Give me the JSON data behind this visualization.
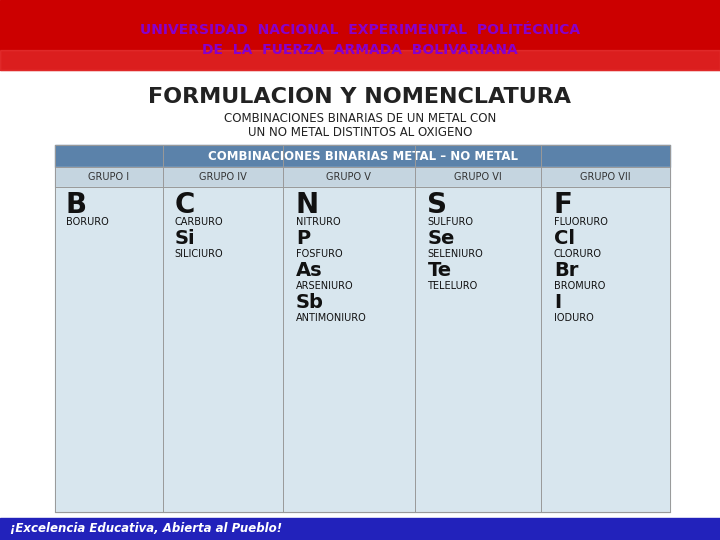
{
  "title1": "FORMULACION Y NOMENCLATURA",
  "title2_line1": "COMBINACIONES BINARIAS DE UN METAL CON",
  "title2_line2": "UN NO METAL DISTINTOS AL OXIGENO",
  "table_header": "COMBINACIONES BINARIAS METAL – NO METAL",
  "col_headers": [
    "GRUPO I",
    "GRUPO IV",
    "GRUPO V",
    "GRUPO VI",
    "GRUPO VII"
  ],
  "col_data": [
    [
      [
        "B",
        "large"
      ],
      [
        "BORURO",
        "small"
      ]
    ],
    [
      [
        "C",
        "large"
      ],
      [
        "CARBURO",
        "small"
      ],
      [
        "Si",
        "medium"
      ],
      [
        "SILICIURO",
        "small"
      ]
    ],
    [
      [
        "N",
        "large"
      ],
      [
        "NITRURO",
        "small"
      ],
      [
        "P",
        "medium"
      ],
      [
        "FOSFURO",
        "small"
      ],
      [
        "As",
        "medium"
      ],
      [
        "ARSENIURO",
        "small"
      ],
      [
        "Sb",
        "medium"
      ],
      [
        "ANTIMONIURO",
        "small"
      ]
    ],
    [
      [
        "S",
        "large"
      ],
      [
        "SULFURO",
        "small"
      ],
      [
        "Se",
        "medium"
      ],
      [
        "SELENIURO",
        "small"
      ],
      [
        "Te",
        "medium"
      ],
      [
        "TELELURO",
        "small"
      ]
    ],
    [
      [
        "F",
        "large"
      ],
      [
        "FLUORURO",
        "small"
      ],
      [
        "Cl",
        "medium"
      ],
      [
        "CLORURO",
        "small"
      ],
      [
        "Br",
        "medium"
      ],
      [
        "BROMURO",
        "small"
      ],
      [
        "I",
        "medium"
      ],
      [
        "IODURO",
        "small"
      ]
    ]
  ],
  "header_bg": "#5B82AA",
  "col_header_bg": "#C5D5E0",
  "cell_bg": "#D8E6EE",
  "table_border": "#999999",
  "title_color": "#222222",
  "header_text_color": "#ffffff",
  "col_header_text_color": "#333333",
  "top_bar_color": "#CC0000",
  "bottom_bar_text": "¡Excelencia Educativa, Abierta al Pueblo!",
  "bottom_bar_color": "#2222BB",
  "bg_color": "#ffffff",
  "top_bar_grad_color": "#FF9999",
  "figsize": [
    7.2,
    5.4
  ],
  "dpi": 100
}
